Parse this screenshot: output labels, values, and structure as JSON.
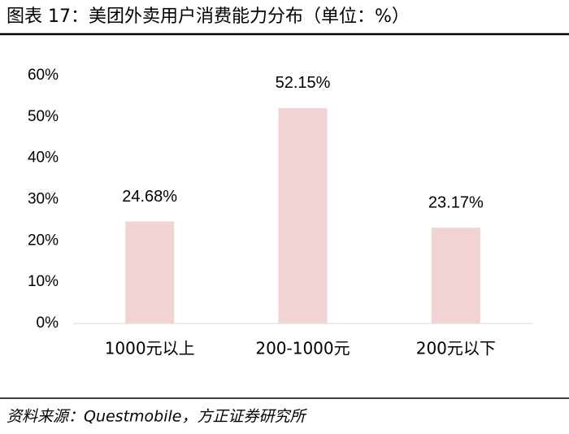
{
  "chart_data": {
    "type": "bar",
    "title": "图表 17：美团外卖用户消费能力分布（单位：%）",
    "source": "资料来源：Questmobile，方正证券研究所",
    "categories": [
      "1000元以上",
      "200-1000元",
      "200元以下"
    ],
    "values": [
      24.68,
      52.15,
      23.17
    ],
    "value_labels": [
      "24.68%",
      "52.15%",
      "23.17%"
    ],
    "color": "#f2d3d3",
    "ylim": [
      0,
      60
    ],
    "yticks": [
      {
        "value": 0,
        "label": "0%"
      },
      {
        "value": 10,
        "label": "10%"
      },
      {
        "value": 20,
        "label": "20%"
      },
      {
        "value": 30,
        "label": "30%"
      },
      {
        "value": 40,
        "label": "40%"
      },
      {
        "value": 50,
        "label": "50%"
      },
      {
        "value": 60,
        "label": "60%"
      }
    ],
    "grid": false
  }
}
